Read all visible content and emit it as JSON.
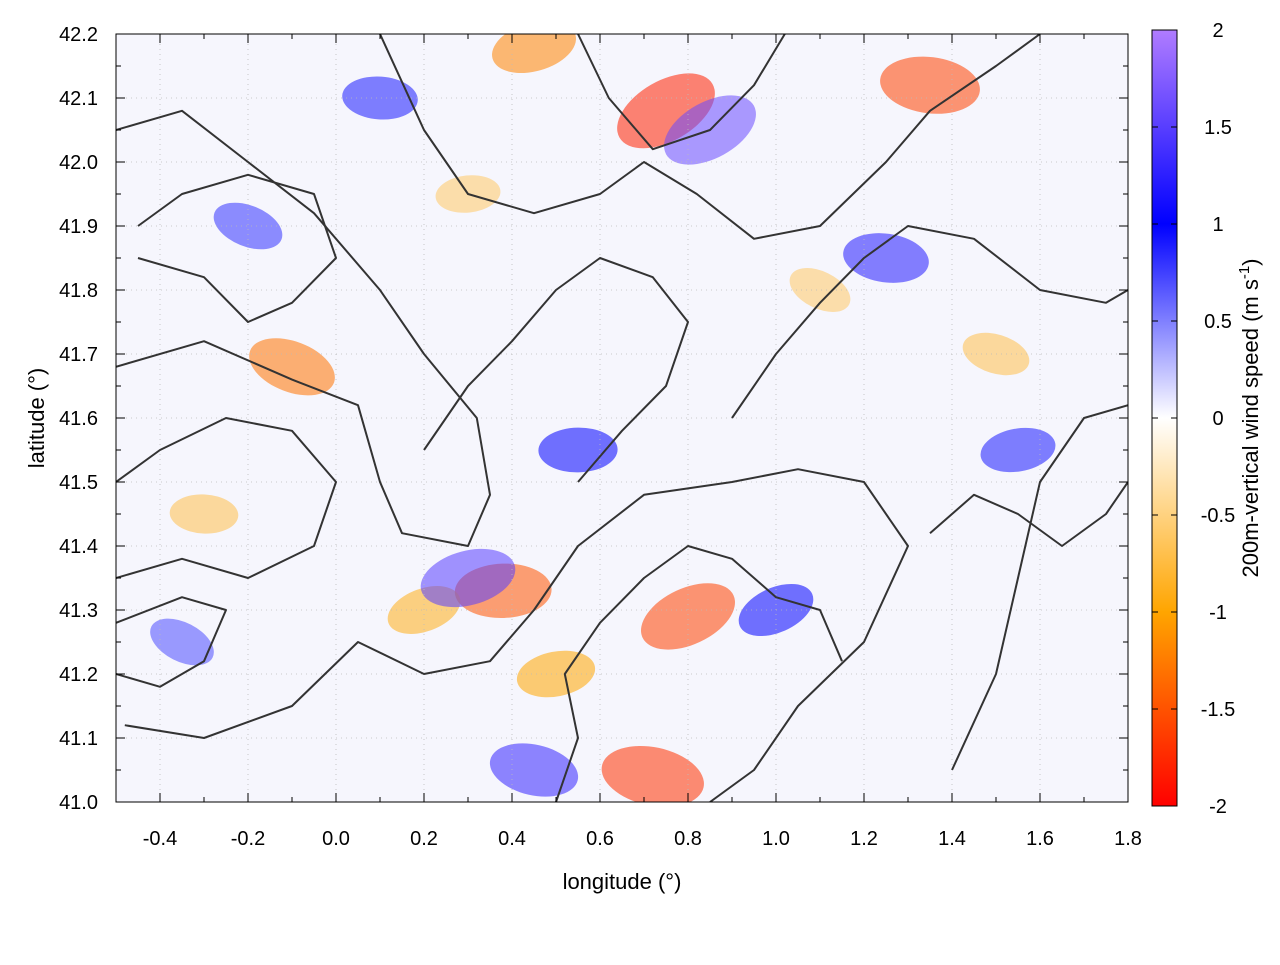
{
  "chart_data": {
    "type": "heatmap",
    "title": "",
    "xlabel": "longitude (°)",
    "ylabel": "latitude (°)",
    "xlim": [
      -0.5,
      1.8
    ],
    "ylim": [
      41.0,
      42.2
    ],
    "xticks": [
      -0.4,
      -0.2,
      0.0,
      0.2,
      0.4,
      0.6,
      0.8,
      1.0,
      1.2,
      1.4,
      1.6,
      1.8
    ],
    "xtick_labels": [
      "-0.4",
      "-0.2",
      "0.0",
      "0.2",
      "0.4",
      "0.6",
      "0.8",
      "1.0",
      "1.2",
      "1.4",
      "1.6",
      "1.8"
    ],
    "yticks": [
      41.0,
      41.1,
      41.2,
      41.3,
      41.4,
      41.5,
      41.6,
      41.7,
      41.8,
      41.9,
      42.0,
      42.1,
      42.2
    ],
    "ytick_labels": [
      "41.0",
      "41.1",
      "41.2",
      "41.3",
      "41.4",
      "41.5",
      "41.6",
      "41.7",
      "41.8",
      "41.9",
      "42.0",
      "42.1",
      "42.2"
    ],
    "grid": true,
    "colorbar": {
      "label": "200m-vertical wind speed (m s",
      "label_superscript": "-1",
      "label_close": ")",
      "range": [
        -2,
        2
      ],
      "ticks": [
        -2,
        -1.5,
        -1,
        -0.5,
        0,
        0.5,
        1,
        1.5,
        2
      ],
      "tick_labels": [
        "-2",
        "-1.5",
        "-1",
        "-0.5",
        "0",
        "0.5",
        "1",
        "1.5",
        "2"
      ],
      "colors": [
        "#ff0000",
        "#ffa500",
        "#ffffff",
        "#0000ff",
        "#b07cff"
      ]
    },
    "features": {
      "updrafts": [
        {
          "lon": 0.85,
          "lat": 42.05,
          "w": 1.6
        },
        {
          "lon": 1.25,
          "lat": 41.85,
          "w": 1.2
        },
        {
          "lon": 0.3,
          "lat": 41.35,
          "w": 1.5
        },
        {
          "lon": -0.2,
          "lat": 41.9,
          "w": 0.8
        },
        {
          "lon": 0.55,
          "lat": 41.55,
          "w": 1.0
        },
        {
          "lon": 1.0,
          "lat": 41.3,
          "w": 1.0
        },
        {
          "lon": 0.45,
          "lat": 41.05,
          "w": 1.3
        },
        {
          "lon": 1.55,
          "lat": 41.55,
          "w": 0.9
        },
        {
          "lon": -0.35,
          "lat": 41.25,
          "w": 0.7
        },
        {
          "lon": 0.1,
          "lat": 42.1,
          "w": 0.9
        }
      ],
      "downdrafts": [
        {
          "lon": 0.75,
          "lat": 42.08,
          "w": -1.8
        },
        {
          "lon": 1.35,
          "lat": 42.12,
          "w": -1.6
        },
        {
          "lon": 0.45,
          "lat": 42.18,
          "w": -1.2
        },
        {
          "lon": -0.1,
          "lat": 41.68,
          "w": -1.3
        },
        {
          "lon": 0.38,
          "lat": 41.33,
          "w": -1.5
        },
        {
          "lon": 0.8,
          "lat": 41.29,
          "w": -1.6
        },
        {
          "lon": 0.72,
          "lat": 41.04,
          "w": -1.7
        },
        {
          "lon": 0.5,
          "lat": 41.2,
          "w": -1.0
        },
        {
          "lon": 1.1,
          "lat": 41.8,
          "w": -0.6
        },
        {
          "lon": -0.3,
          "lat": 41.45,
          "w": -0.7
        },
        {
          "lon": 0.2,
          "lat": 41.3,
          "w": -0.9
        },
        {
          "lon": 1.5,
          "lat": 41.7,
          "w": -0.7
        },
        {
          "lon": 0.3,
          "lat": 41.95,
          "w": -0.6
        }
      ],
      "contours": [
        [
          [
            -0.5,
            41.68
          ],
          [
            -0.3,
            41.72
          ],
          [
            -0.1,
            41.66
          ],
          [
            0.05,
            41.62
          ],
          [
            0.1,
            41.5
          ],
          [
            0.15,
            41.42
          ],
          [
            0.3,
            41.4
          ],
          [
            0.35,
            41.48
          ],
          [
            0.32,
            41.6
          ],
          [
            0.2,
            41.7
          ],
          [
            0.1,
            41.8
          ],
          [
            -0.05,
            41.92
          ],
          [
            -0.2,
            42.0
          ],
          [
            -0.35,
            42.08
          ],
          [
            -0.5,
            42.05
          ]
        ],
        [
          [
            -0.48,
            41.12
          ],
          [
            -0.3,
            41.1
          ],
          [
            -0.1,
            41.15
          ],
          [
            0.05,
            41.25
          ],
          [
            0.2,
            41.2
          ],
          [
            0.35,
            41.22
          ],
          [
            0.45,
            41.3
          ],
          [
            0.55,
            41.4
          ],
          [
            0.7,
            41.48
          ],
          [
            0.9,
            41.5
          ],
          [
            1.05,
            41.52
          ],
          [
            1.2,
            41.5
          ],
          [
            1.3,
            41.4
          ],
          [
            1.2,
            41.25
          ],
          [
            1.05,
            41.15
          ],
          [
            0.95,
            41.05
          ],
          [
            0.85,
            41.0
          ]
        ],
        [
          [
            0.1,
            42.2
          ],
          [
            0.2,
            42.05
          ],
          [
            0.3,
            41.95
          ],
          [
            0.45,
            41.92
          ],
          [
            0.6,
            41.95
          ],
          [
            0.7,
            42.0
          ],
          [
            0.82,
            41.95
          ],
          [
            0.95,
            41.88
          ],
          [
            1.1,
            41.9
          ],
          [
            1.25,
            42.0
          ],
          [
            1.35,
            42.08
          ],
          [
            1.5,
            42.15
          ],
          [
            1.6,
            42.2
          ]
        ],
        [
          [
            0.55,
            42.2
          ],
          [
            0.62,
            42.1
          ],
          [
            0.72,
            42.02
          ],
          [
            0.85,
            42.05
          ],
          [
            0.95,
            42.12
          ],
          [
            1.02,
            42.2
          ]
        ],
        [
          [
            1.4,
            41.05
          ],
          [
            1.5,
            41.2
          ],
          [
            1.55,
            41.35
          ],
          [
            1.6,
            41.5
          ],
          [
            1.7,
            41.6
          ],
          [
            1.8,
            41.62
          ]
        ],
        [
          [
            -0.5,
            41.35
          ],
          [
            -0.35,
            41.38
          ],
          [
            -0.2,
            41.35
          ],
          [
            -0.05,
            41.4
          ],
          [
            0.0,
            41.5
          ],
          [
            -0.1,
            41.58
          ],
          [
            -0.25,
            41.6
          ],
          [
            -0.4,
            41.55
          ],
          [
            -0.5,
            41.5
          ]
        ],
        [
          [
            0.5,
            41.0
          ],
          [
            0.55,
            41.1
          ],
          [
            0.52,
            41.2
          ],
          [
            0.6,
            41.28
          ],
          [
            0.7,
            41.35
          ],
          [
            0.8,
            41.4
          ],
          [
            0.9,
            41.38
          ],
          [
            1.0,
            41.32
          ],
          [
            1.1,
            41.3
          ],
          [
            1.15,
            41.22
          ]
        ],
        [
          [
            0.9,
            41.6
          ],
          [
            1.0,
            41.7
          ],
          [
            1.1,
            41.78
          ],
          [
            1.2,
            41.85
          ],
          [
            1.3,
            41.9
          ],
          [
            1.45,
            41.88
          ],
          [
            1.6,
            41.8
          ],
          [
            1.75,
            41.78
          ],
          [
            1.8,
            41.8
          ]
        ],
        [
          [
            -0.45,
            41.85
          ],
          [
            -0.3,
            41.82
          ],
          [
            -0.2,
            41.75
          ],
          [
            -0.1,
            41.78
          ],
          [
            0.0,
            41.85
          ],
          [
            -0.05,
            41.95
          ],
          [
            -0.2,
            41.98
          ],
          [
            -0.35,
            41.95
          ],
          [
            -0.45,
            41.9
          ]
        ],
        [
          [
            0.2,
            41.55
          ],
          [
            0.3,
            41.65
          ],
          [
            0.4,
            41.72
          ],
          [
            0.5,
            41.8
          ],
          [
            0.6,
            41.85
          ],
          [
            0.72,
            41.82
          ],
          [
            0.8,
            41.75
          ],
          [
            0.75,
            41.65
          ],
          [
            0.65,
            41.58
          ],
          [
            0.55,
            41.5
          ]
        ],
        [
          [
            1.35,
            41.42
          ],
          [
            1.45,
            41.48
          ],
          [
            1.55,
            41.45
          ],
          [
            1.65,
            41.4
          ],
          [
            1.75,
            41.45
          ],
          [
            1.8,
            41.5
          ]
        ],
        [
          [
            -0.5,
            41.2
          ],
          [
            -0.4,
            41.18
          ],
          [
            -0.3,
            41.22
          ],
          [
            -0.25,
            41.3
          ],
          [
            -0.35,
            41.32
          ],
          [
            -0.5,
            41.28
          ]
        ]
      ]
    }
  }
}
